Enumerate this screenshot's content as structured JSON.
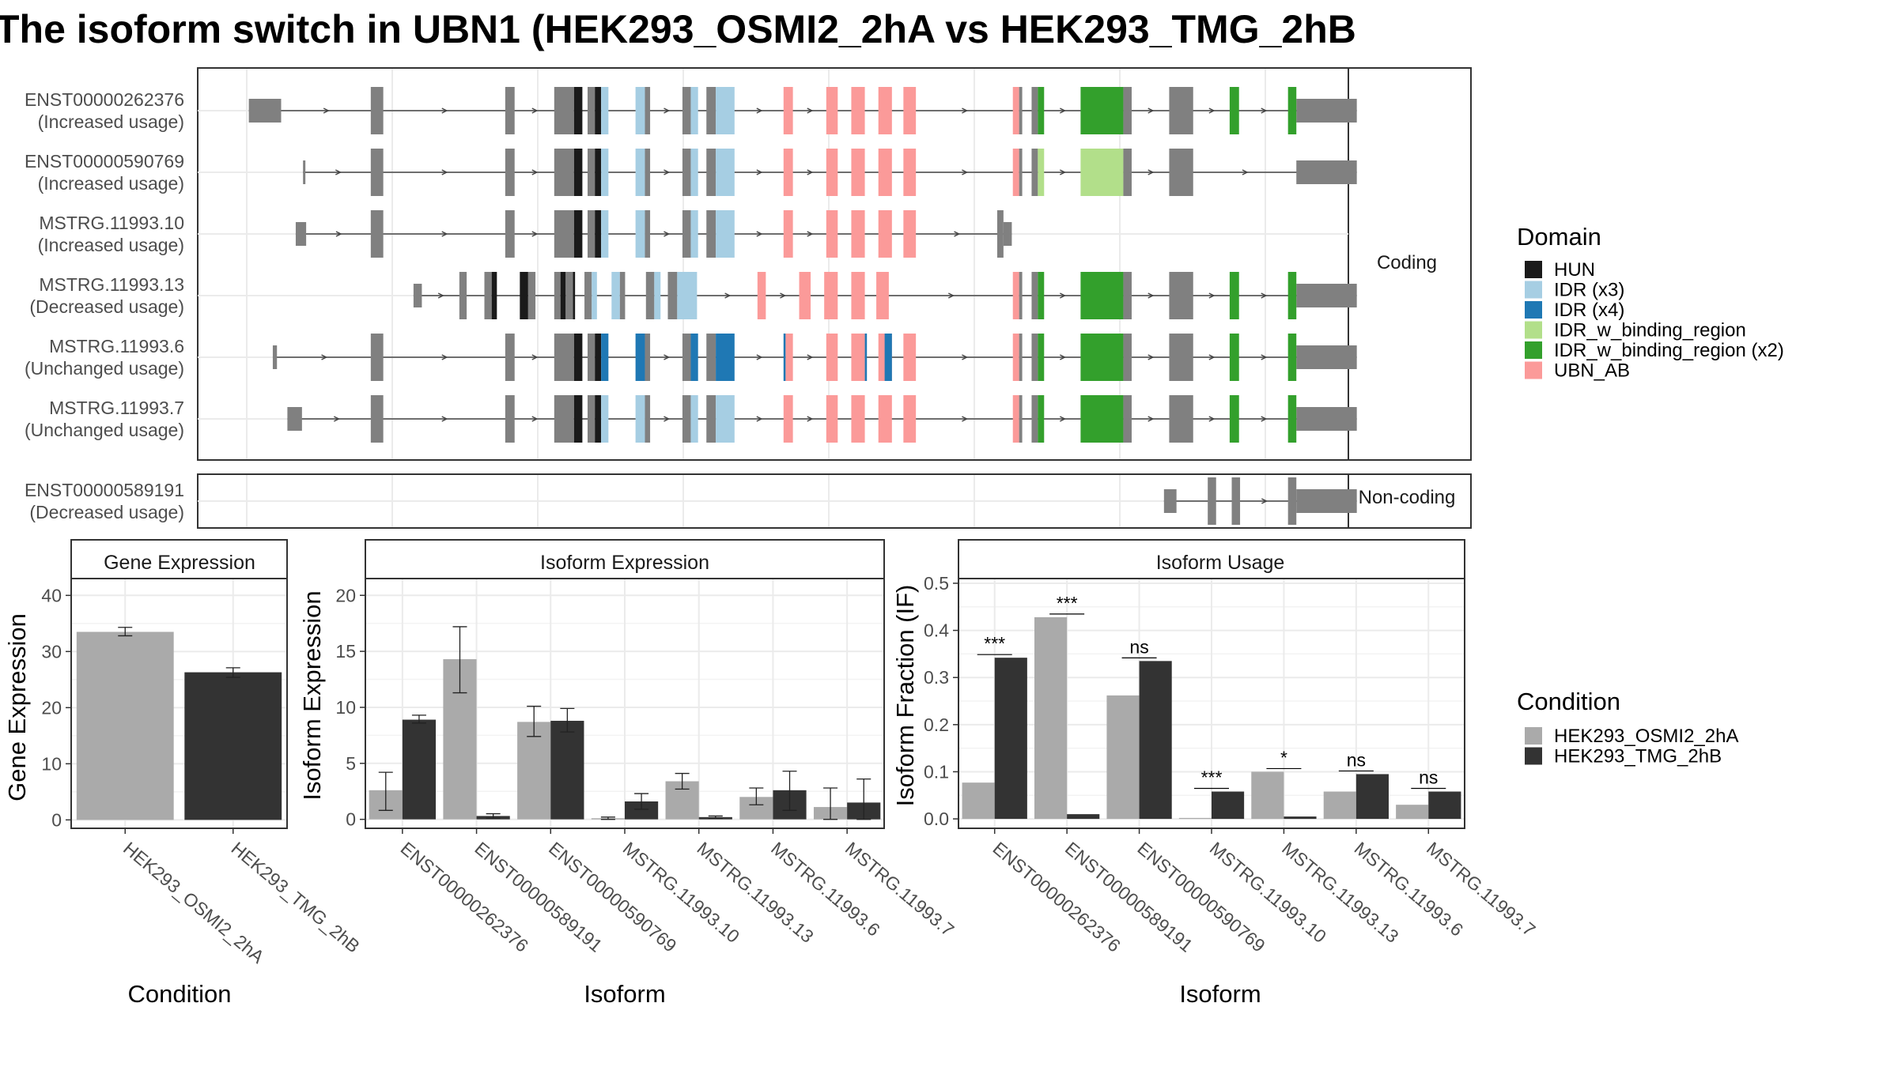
{
  "title": "The isoform switch in UBN1 (HEK293_OSMI2_2hA vs HEK293_TMG_2hB",
  "structure": {
    "coding_label": "Coding",
    "noncoding_label": "Non-coding",
    "coord_range": [
      0,
      1000
    ],
    "gray": "#808080",
    "intron_color": "#444444",
    "coding": [
      {
        "id": "ENST00000262376",
        "usage": "(Increased usage)",
        "utr": [
          [
            2,
            33
          ]
        ],
        "exons": [
          [
            119,
            131,
            "gray"
          ],
          [
            248,
            257,
            "gray"
          ],
          [
            295,
            314,
            "gray"
          ],
          [
            314,
            322,
            "HUN"
          ],
          [
            327,
            334,
            "gray"
          ],
          [
            334,
            340,
            "HUN"
          ],
          [
            340,
            347,
            "IDR3"
          ],
          [
            373,
            382,
            "IDR3"
          ],
          [
            382,
            387,
            "gray"
          ],
          [
            418,
            426,
            "gray"
          ],
          [
            426,
            433,
            "IDR3"
          ],
          [
            441,
            450,
            "gray"
          ],
          [
            450,
            468,
            "IDR3"
          ],
          [
            515,
            524,
            "UBN_AB"
          ],
          [
            556,
            567,
            "UBN_AB"
          ],
          [
            580,
            593,
            "UBN_AB"
          ],
          [
            606,
            619,
            "UBN_AB"
          ],
          [
            630,
            642,
            "UBN_AB"
          ],
          [
            735,
            741,
            "UBN_AB"
          ],
          [
            741,
            744,
            "gray"
          ],
          [
            753,
            759,
            "gray"
          ],
          [
            759,
            765,
            "IDR_WBR2"
          ],
          [
            800,
            841,
            "IDR_WBR2"
          ],
          [
            841,
            849,
            "gray"
          ],
          [
            885,
            908,
            "gray"
          ],
          [
            943,
            952,
            "IDR_WBR2"
          ],
          [
            999,
            1007,
            "IDR_WBR2"
          ]
        ],
        "utr3": [
          [
            1007,
            1065
          ]
        ]
      },
      {
        "id": "ENST00000590769",
        "usage": "(Increased usage)",
        "utr": [
          [
            54,
            56
          ]
        ],
        "exons": [
          [
            119,
            131,
            "gray"
          ],
          [
            248,
            257,
            "gray"
          ],
          [
            295,
            314,
            "gray"
          ],
          [
            314,
            322,
            "HUN"
          ],
          [
            327,
            334,
            "gray"
          ],
          [
            334,
            340,
            "HUN"
          ],
          [
            340,
            347,
            "IDR3"
          ],
          [
            373,
            382,
            "IDR3"
          ],
          [
            382,
            387,
            "gray"
          ],
          [
            418,
            426,
            "gray"
          ],
          [
            426,
            433,
            "IDR3"
          ],
          [
            441,
            450,
            "gray"
          ],
          [
            450,
            468,
            "IDR3"
          ],
          [
            515,
            524,
            "UBN_AB"
          ],
          [
            556,
            567,
            "UBN_AB"
          ],
          [
            580,
            593,
            "UBN_AB"
          ],
          [
            606,
            619,
            "UBN_AB"
          ],
          [
            630,
            642,
            "UBN_AB"
          ],
          [
            735,
            741,
            "UBN_AB"
          ],
          [
            741,
            744,
            "gray"
          ],
          [
            753,
            759,
            "gray"
          ],
          [
            759,
            765,
            "IDR_WBR1"
          ],
          [
            800,
            841,
            "IDR_WBR1"
          ],
          [
            841,
            849,
            "gray"
          ],
          [
            885,
            908,
            "gray"
          ]
        ],
        "utr3": [
          [
            1007,
            1065
          ]
        ]
      },
      {
        "id": "MSTRG.11993.10",
        "usage": "(Increased usage)",
        "utr": [
          [
            47,
            57
          ]
        ],
        "exons": [
          [
            119,
            131,
            "gray"
          ],
          [
            248,
            257,
            "gray"
          ],
          [
            295,
            314,
            "gray"
          ],
          [
            314,
            322,
            "HUN"
          ],
          [
            327,
            334,
            "gray"
          ],
          [
            334,
            340,
            "HUN"
          ],
          [
            340,
            347,
            "IDR3"
          ],
          [
            373,
            382,
            "IDR3"
          ],
          [
            382,
            387,
            "gray"
          ],
          [
            418,
            426,
            "gray"
          ],
          [
            426,
            433,
            "IDR3"
          ],
          [
            441,
            450,
            "gray"
          ],
          [
            450,
            468,
            "IDR3"
          ],
          [
            515,
            524,
            "UBN_AB"
          ],
          [
            556,
            567,
            "UBN_AB"
          ],
          [
            580,
            593,
            "UBN_AB"
          ],
          [
            606,
            619,
            "UBN_AB"
          ],
          [
            630,
            642,
            "UBN_AB"
          ],
          [
            720,
            726,
            "gray"
          ]
        ],
        "utr3": [
          [
            726,
            734
          ]
        ]
      },
      {
        "id": "MSTRG.11993.13",
        "usage": "(Decreased usage)",
        "utr": [
          [
            160,
            168
          ]
        ],
        "exons": [
          [
            204,
            211,
            "gray"
          ],
          [
            228,
            235,
            "gray"
          ],
          [
            235,
            240,
            "HUN"
          ],
          [
            262,
            270,
            "HUN"
          ],
          [
            270,
            277,
            "gray"
          ],
          [
            295,
            301,
            "gray"
          ],
          [
            301,
            306,
            "HUN"
          ],
          [
            306,
            313,
            "gray"
          ],
          [
            313,
            315,
            "HUN"
          ],
          [
            324,
            331,
            "gray"
          ],
          [
            331,
            336,
            "IDR3"
          ],
          [
            350,
            358,
            "IDR3"
          ],
          [
            358,
            363,
            "gray"
          ],
          [
            383,
            391,
            "gray"
          ],
          [
            391,
            397,
            "IDR3"
          ],
          [
            404,
            413,
            "gray"
          ],
          [
            413,
            432,
            "IDR3"
          ],
          [
            490,
            498,
            "UBN_AB"
          ],
          [
            530,
            541,
            "UBN_AB"
          ],
          [
            554,
            567,
            "UBN_AB"
          ],
          [
            580,
            593,
            "UBN_AB"
          ],
          [
            604,
            616,
            "UBN_AB"
          ],
          [
            735,
            741,
            "UBN_AB"
          ],
          [
            741,
            744,
            "gray"
          ],
          [
            753,
            759,
            "gray"
          ],
          [
            759,
            765,
            "IDR_WBR2"
          ],
          [
            800,
            841,
            "IDR_WBR2"
          ],
          [
            841,
            849,
            "gray"
          ],
          [
            885,
            908,
            "gray"
          ],
          [
            943,
            952,
            "IDR_WBR2"
          ],
          [
            999,
            1007,
            "IDR_WBR2"
          ]
        ],
        "utr3": [
          [
            1007,
            1065
          ]
        ]
      },
      {
        "id": "MSTRG.11993.6",
        "usage": "(Unchanged usage)",
        "utr": [
          [
            25,
            29
          ]
        ],
        "exons": [
          [
            119,
            131,
            "gray"
          ],
          [
            248,
            257,
            "gray"
          ],
          [
            295,
            314,
            "gray"
          ],
          [
            314,
            322,
            "HUN"
          ],
          [
            327,
            334,
            "gray"
          ],
          [
            334,
            340,
            "HUN"
          ],
          [
            340,
            347,
            "IDR4"
          ],
          [
            373,
            382,
            "IDR4"
          ],
          [
            382,
            387,
            "gray"
          ],
          [
            418,
            426,
            "gray"
          ],
          [
            426,
            433,
            "IDR4"
          ],
          [
            441,
            450,
            "gray"
          ],
          [
            450,
            468,
            "IDR4"
          ],
          [
            515,
            517,
            "IDR4"
          ],
          [
            517,
            524,
            "UBN_AB"
          ],
          [
            556,
            567,
            "UBN_AB"
          ],
          [
            580,
            593,
            "UBN_AB"
          ],
          [
            593,
            595,
            "IDR4"
          ],
          [
            606,
            619,
            "UBN_AB"
          ],
          [
            612,
            619,
            "IDR4"
          ],
          [
            630,
            642,
            "UBN_AB"
          ],
          [
            735,
            741,
            "UBN_AB"
          ],
          [
            741,
            744,
            "gray"
          ],
          [
            753,
            759,
            "gray"
          ],
          [
            759,
            765,
            "IDR_WBR2"
          ],
          [
            800,
            841,
            "IDR_WBR2"
          ],
          [
            841,
            849,
            "gray"
          ],
          [
            885,
            908,
            "gray"
          ],
          [
            943,
            952,
            "IDR_WBR2"
          ],
          [
            999,
            1007,
            "IDR_WBR2"
          ]
        ],
        "utr3": [
          [
            1007,
            1065
          ]
        ]
      },
      {
        "id": "MSTRG.11993.7",
        "usage": "(Unchanged usage)",
        "utr": [
          [
            39,
            53
          ]
        ],
        "exons": [
          [
            119,
            131,
            "gray"
          ],
          [
            248,
            257,
            "gray"
          ],
          [
            295,
            314,
            "gray"
          ],
          [
            314,
            322,
            "HUN"
          ],
          [
            327,
            334,
            "gray"
          ],
          [
            334,
            340,
            "HUN"
          ],
          [
            340,
            347,
            "IDR3"
          ],
          [
            373,
            382,
            "IDR3"
          ],
          [
            382,
            387,
            "gray"
          ],
          [
            418,
            426,
            "gray"
          ],
          [
            426,
            433,
            "IDR3"
          ],
          [
            441,
            450,
            "gray"
          ],
          [
            450,
            468,
            "IDR3"
          ],
          [
            515,
            524,
            "UBN_AB"
          ],
          [
            556,
            567,
            "UBN_AB"
          ],
          [
            580,
            593,
            "UBN_AB"
          ],
          [
            606,
            619,
            "UBN_AB"
          ],
          [
            630,
            642,
            "UBN_AB"
          ],
          [
            735,
            741,
            "UBN_AB"
          ],
          [
            741,
            744,
            "gray"
          ],
          [
            753,
            759,
            "gray"
          ],
          [
            759,
            765,
            "IDR_WBR2"
          ],
          [
            800,
            841,
            "IDR_WBR2"
          ],
          [
            841,
            849,
            "gray"
          ],
          [
            885,
            908,
            "gray"
          ],
          [
            943,
            952,
            "IDR_WBR2"
          ],
          [
            999,
            1007,
            "IDR_WBR2"
          ]
        ],
        "utr3": [
          [
            1007,
            1065
          ]
        ]
      }
    ],
    "noncoding": [
      {
        "id": "ENST00000589191",
        "usage": "(Decreased usage)",
        "utr": [
          [
            880,
            892
          ]
        ],
        "exons": [
          [
            922,
            930,
            "gray"
          ],
          [
            945,
            953,
            "gray"
          ],
          [
            999,
            1007,
            "gray"
          ]
        ],
        "utr3": [
          [
            1007,
            1065
          ]
        ]
      }
    ]
  },
  "domain_legend": {
    "title": "Domain",
    "items": [
      {
        "key": "HUN",
        "label": "HUN",
        "color": "#1a1a1a"
      },
      {
        "key": "IDR3",
        "label": "IDR (x3)",
        "color": "#a6cee3"
      },
      {
        "key": "IDR4",
        "label": "IDR (x4)",
        "color": "#1f78b4"
      },
      {
        "key": "IDR_WBR1",
        "label": "IDR_w_binding_region",
        "color": "#b2df8a"
      },
      {
        "key": "IDR_WBR2",
        "label": "IDR_w_binding_region (x2)",
        "color": "#33a02c"
      },
      {
        "key": "UBN_AB",
        "label": "UBN_AB",
        "color": "#fb9a99"
      }
    ]
  },
  "condition_legend": {
    "title": "Condition",
    "items": [
      {
        "label": "HEK293_OSMI2_2hA",
        "color": "#aaaaaa"
      },
      {
        "label": "HEK293_TMG_2hB",
        "color": "#333333"
      }
    ]
  },
  "chart_data": [
    {
      "type": "bar",
      "title": "Gene Expression",
      "xlabel": "Condition",
      "ylabel": "Gene Expression",
      "ylim": [
        -1.5,
        43
      ],
      "yticks": [
        0,
        10,
        20,
        30,
        40
      ],
      "categories": [
        "HEK293_OSMI2_2hA",
        "HEK293_TMG_2hB"
      ],
      "series": [
        {
          "values": [
            33.5,
            26.3
          ],
          "err_low": [
            32.8,
            25.4
          ],
          "err_high": [
            34.3,
            27.1
          ],
          "colors": [
            "#aaaaaa",
            "#333333"
          ]
        }
      ]
    },
    {
      "type": "bar",
      "title": "Isoform Expression",
      "xlabel": "Isoform",
      "ylabel": "Isoform Expression",
      "ylim": [
        -0.8,
        21.5
      ],
      "yticks": [
        0,
        5,
        10,
        15,
        20
      ],
      "categories": [
        "ENST00000262376",
        "ENST00000589191",
        "ENST00000590769",
        "MSTRG.11993.10",
        "MSTRG.11993.13",
        "MSTRG.11993.6",
        "MSTRG.11993.7"
      ],
      "series": [
        {
          "name": "HEK293_OSMI2_2hA",
          "color": "#aaaaaa",
          "values": [
            2.6,
            14.3,
            8.7,
            0.1,
            3.4,
            2.0,
            1.1
          ],
          "err_low": [
            0.8,
            11.3,
            7.4,
            0.0,
            2.7,
            1.3,
            0.0
          ],
          "err_high": [
            4.2,
            17.2,
            10.1,
            0.2,
            4.1,
            2.8,
            2.8
          ]
        },
        {
          "name": "HEK293_TMG_2hB",
          "color": "#333333",
          "values": [
            8.9,
            0.3,
            8.8,
            1.6,
            0.2,
            2.6,
            1.5
          ],
          "err_low": [
            8.6,
            0.1,
            7.8,
            0.9,
            0.1,
            0.8,
            0.0
          ],
          "err_high": [
            9.3,
            0.5,
            9.9,
            2.3,
            0.3,
            4.3,
            3.6
          ]
        }
      ]
    },
    {
      "type": "bar",
      "title": "Isoform Usage",
      "xlabel": "Isoform",
      "ylabel": "Isoform Fraction (IF)",
      "ylim": [
        -0.02,
        0.51
      ],
      "yticks": [
        0.0,
        0.1,
        0.2,
        0.3,
        0.4,
        0.5
      ],
      "ytick_labels": [
        "0.0",
        "0.1",
        "0.2",
        "0.3",
        "0.4",
        "0.5"
      ],
      "categories": [
        "ENST00000262376",
        "ENST00000589191",
        "ENST00000590769",
        "MSTRG.11993.10",
        "MSTRG.11993.13",
        "MSTRG.11993.6",
        "MSTRG.11993.7"
      ],
      "series": [
        {
          "name": "HEK293_OSMI2_2hA",
          "color": "#aaaaaa",
          "values": [
            0.077,
            0.428,
            0.262,
            0.002,
            0.1,
            0.058,
            0.03
          ]
        },
        {
          "name": "HEK293_TMG_2hB",
          "color": "#333333",
          "values": [
            0.342,
            0.01,
            0.335,
            0.058,
            0.005,
            0.095,
            0.058
          ]
        }
      ],
      "significance": [
        "***",
        "***",
        "ns",
        "***",
        "*",
        "ns",
        "ns"
      ]
    }
  ]
}
